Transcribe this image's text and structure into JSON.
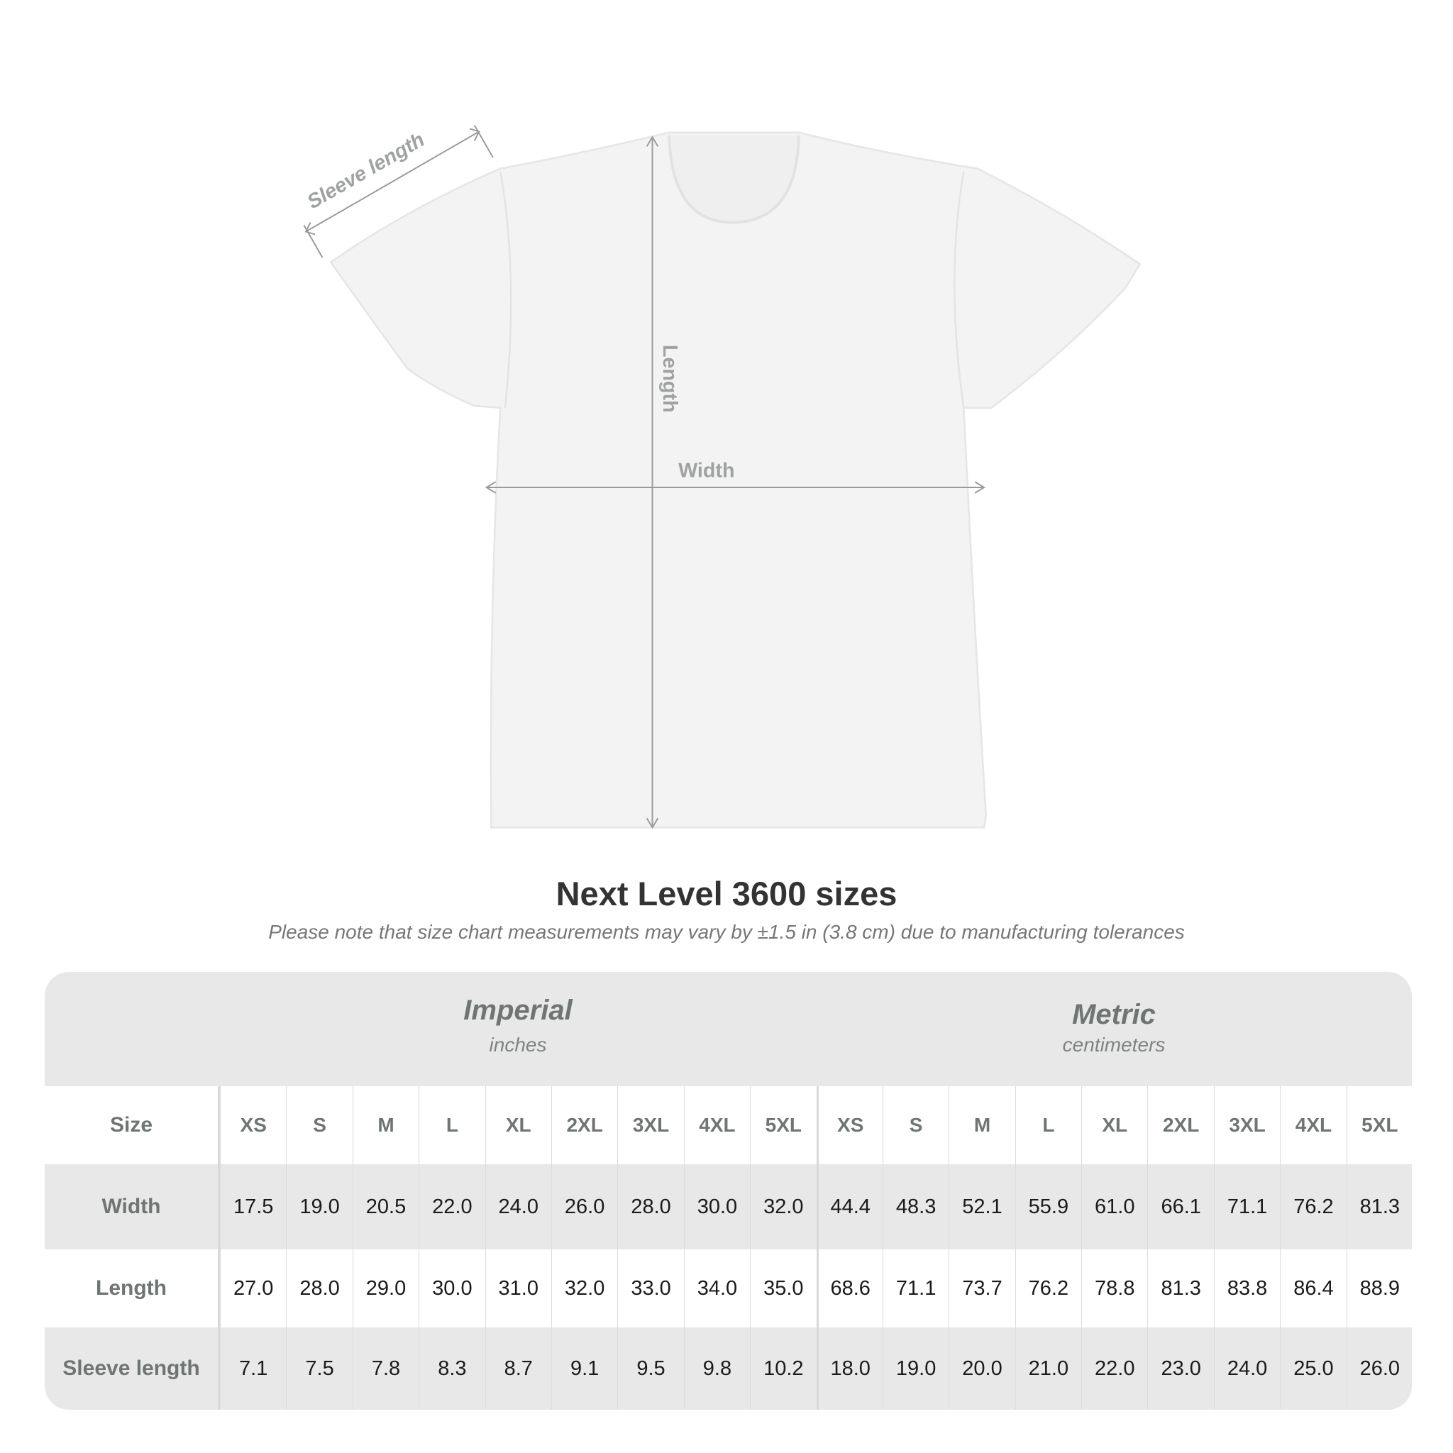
{
  "diagram": {
    "labels": {
      "sleeve": "Sleeve length",
      "length": "Length",
      "width": "Width"
    },
    "colors": {
      "shirt": "#f4f4f4",
      "arrows": "#9a9a9a",
      "label_text": "#9ea3a1"
    }
  },
  "title": "Next Level 3600 sizes",
  "note": "Please note that size chart measurements may vary by ±1.5 in (3.8 cm) due to manufacturing tolerances",
  "table": {
    "imperial": {
      "title": "Imperial",
      "unit": "inches"
    },
    "metric": {
      "title": "Metric",
      "unit": "centimeters"
    },
    "size_label": "Size",
    "sizes": [
      "XS",
      "S",
      "M",
      "L",
      "XL",
      "2XL",
      "3XL",
      "4XL",
      "5XL"
    ],
    "rows": [
      {
        "label": "Width",
        "imperial": [
          "17.5",
          "19.0",
          "20.5",
          "22.0",
          "24.0",
          "26.0",
          "28.0",
          "30.0",
          "32.0"
        ],
        "metric": [
          "44.4",
          "48.3",
          "52.1",
          "55.9",
          "61.0",
          "66.1",
          "71.1",
          "76.2",
          "81.3"
        ]
      },
      {
        "label": "Length",
        "imperial": [
          "27.0",
          "28.0",
          "29.0",
          "30.0",
          "31.0",
          "32.0",
          "33.0",
          "34.0",
          "35.0"
        ],
        "metric": [
          "68.6",
          "71.1",
          "73.7",
          "76.2",
          "78.8",
          "81.3",
          "83.8",
          "86.4",
          "88.9"
        ]
      },
      {
        "label": "Sleeve length",
        "imperial": [
          "7.1",
          "7.5",
          "7.8",
          "8.3",
          "8.7",
          "9.1",
          "9.5",
          "9.8",
          "10.2"
        ],
        "metric": [
          "18.0",
          "19.0",
          "20.0",
          "21.0",
          "22.0",
          "23.0",
          "24.0",
          "25.0",
          "26.0"
        ]
      }
    ]
  }
}
